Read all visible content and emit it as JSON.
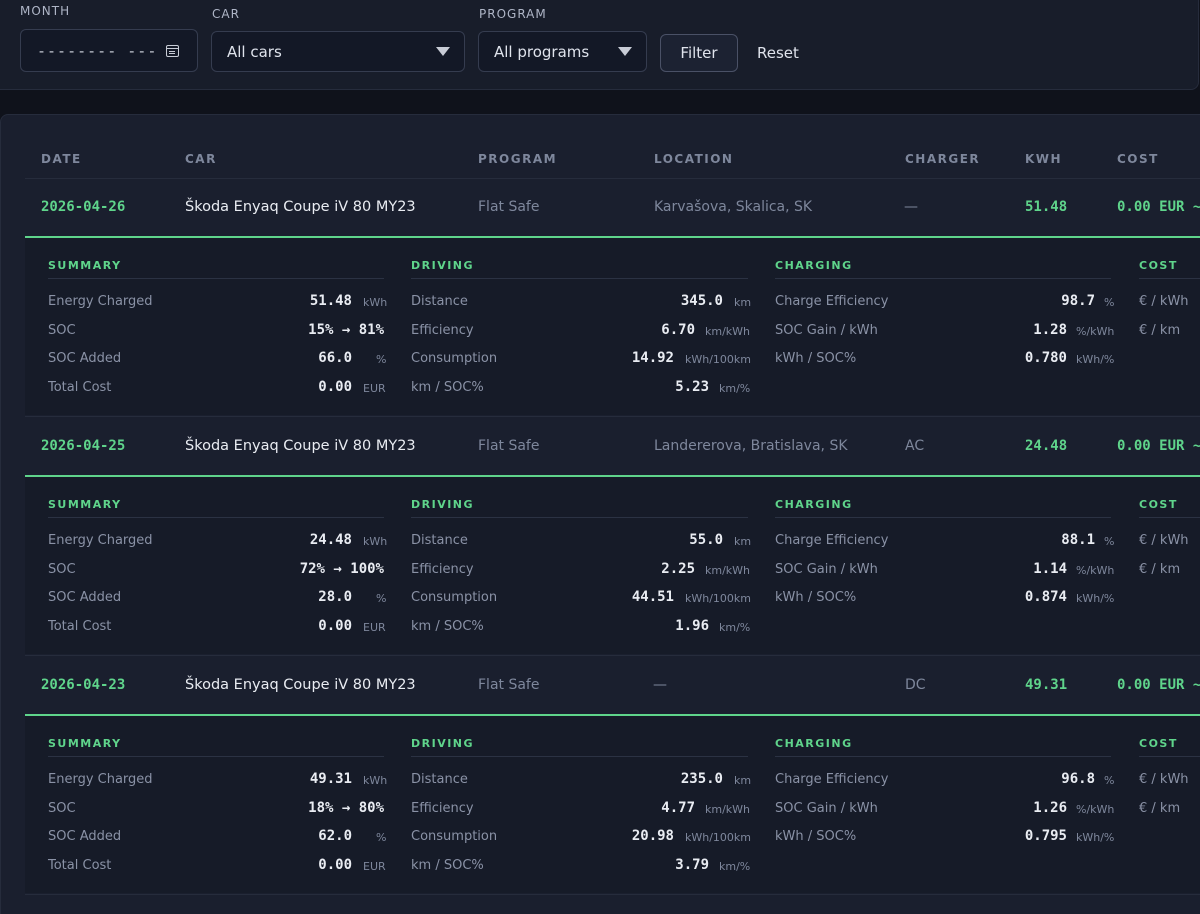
{
  "filters": {
    "month_label": "MONTH",
    "month_value": "-------- ---",
    "car_label": "CAR",
    "car_value": "All cars",
    "program_label": "PROGRAM",
    "program_value": "All programs",
    "filter_button": "Filter",
    "reset_button": "Reset"
  },
  "table": {
    "headers": [
      "DATE",
      "CAR",
      "PROGRAM",
      "LOCATION",
      "CHARGER",
      "KWH",
      "COST"
    ],
    "section_titles": {
      "summary": "SUMMARY",
      "driving": "DRIVING",
      "charging": "CHARGING",
      "cost": "COST"
    },
    "labels": {
      "summary": [
        "Energy Charged",
        "SOC",
        "SOC Added",
        "Total Cost"
      ],
      "driving": [
        "Distance",
        "Efficiency",
        "Consumption",
        "km / SOC%"
      ],
      "charging": [
        "Charge Efficiency",
        "SOC Gain / kWh",
        "kWh / SOC%"
      ],
      "cost": [
        "€ / kWh",
        "€ / km"
      ]
    },
    "rows": [
      {
        "date": "2026-04-26",
        "car": "Škoda Enyaq Coupe iV 80 MY23",
        "program": "Flat Safe",
        "location": "Karvašova, Skalica, SK",
        "charger": "—",
        "kwh": "51.48",
        "cost": "0.00 EUR ~",
        "summary": [
          {
            "value": "51.48",
            "unit": "kWh"
          },
          {
            "value": "15% → 81%",
            "unit": ""
          },
          {
            "value": "66.0",
            "unit": "%"
          },
          {
            "value": "0.00",
            "unit": "EUR"
          }
        ],
        "driving": [
          {
            "value": "345.0",
            "unit": "km"
          },
          {
            "value": "6.70",
            "unit": "km/kWh"
          },
          {
            "value": "14.92",
            "unit": "kWh/100km"
          },
          {
            "value": "5.23",
            "unit": "km/%"
          }
        ],
        "charging": [
          {
            "value": "98.7",
            "unit": "%"
          },
          {
            "value": "1.28",
            "unit": "%/kWh"
          },
          {
            "value": "0.780",
            "unit": "kWh/%"
          }
        ]
      },
      {
        "date": "2026-04-25",
        "car": "Škoda Enyaq Coupe iV 80 MY23",
        "program": "Flat Safe",
        "location": "Landererova, Bratislava, SK",
        "charger": "AC",
        "kwh": "24.48",
        "cost": "0.00 EUR ~",
        "summary": [
          {
            "value": "24.48",
            "unit": "kWh"
          },
          {
            "value": "72% → 100%",
            "unit": ""
          },
          {
            "value": "28.0",
            "unit": "%"
          },
          {
            "value": "0.00",
            "unit": "EUR"
          }
        ],
        "driving": [
          {
            "value": "55.0",
            "unit": "km"
          },
          {
            "value": "2.25",
            "unit": "km/kWh"
          },
          {
            "value": "44.51",
            "unit": "kWh/100km"
          },
          {
            "value": "1.96",
            "unit": "km/%"
          }
        ],
        "charging": [
          {
            "value": "88.1",
            "unit": "%"
          },
          {
            "value": "1.14",
            "unit": "%/kWh"
          },
          {
            "value": "0.874",
            "unit": "kWh/%"
          }
        ]
      },
      {
        "date": "2026-04-23",
        "car": "Škoda Enyaq Coupe iV 80 MY23",
        "program": "Flat Safe",
        "location": "—",
        "charger": "DC",
        "kwh": "49.31",
        "cost": "0.00 EUR ~",
        "summary": [
          {
            "value": "49.31",
            "unit": "kWh"
          },
          {
            "value": "18% → 80%",
            "unit": ""
          },
          {
            "value": "62.0",
            "unit": "%"
          },
          {
            "value": "0.00",
            "unit": "EUR"
          }
        ],
        "driving": [
          {
            "value": "235.0",
            "unit": "km"
          },
          {
            "value": "4.77",
            "unit": "km/kWh"
          },
          {
            "value": "20.98",
            "unit": "kWh/100km"
          },
          {
            "value": "3.79",
            "unit": "km/%"
          }
        ],
        "charging": [
          {
            "value": "96.8",
            "unit": "%"
          },
          {
            "value": "1.26",
            "unit": "%/kWh"
          },
          {
            "value": "0.795",
            "unit": "kWh/%"
          }
        ]
      }
    ]
  },
  "colors": {
    "accent": "#5fd48b",
    "background": "#0f121b",
    "panel": "#1a1f2e",
    "muted_text": "#7e879c"
  }
}
